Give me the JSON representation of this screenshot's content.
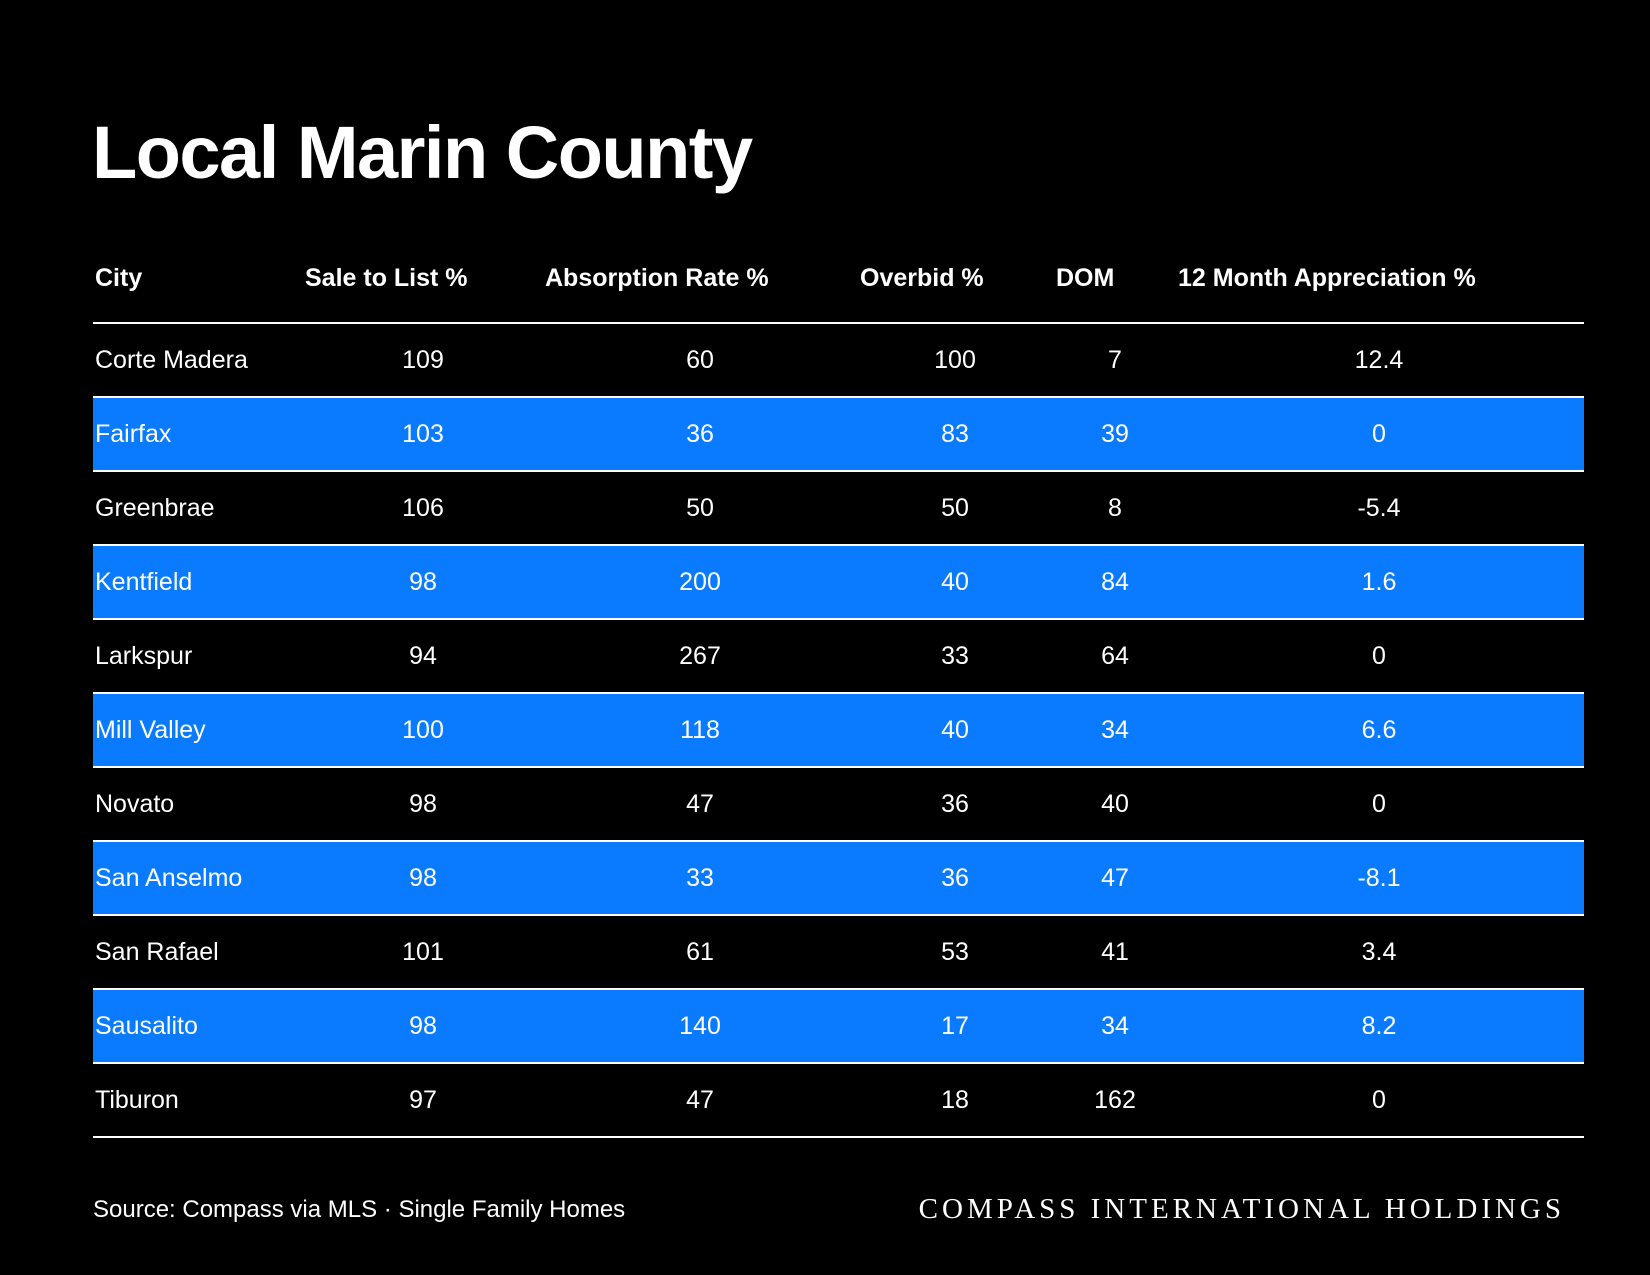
{
  "title": "Local Marin County",
  "table": {
    "headers": [
      "City",
      "Sale to List %",
      "Absorption Rate %",
      "Overbid %",
      "DOM",
      "12 Month Appreciation %"
    ],
    "rows": [
      [
        "Corte Madera",
        "109",
        "60",
        "100",
        "7",
        "12.4"
      ],
      [
        "Fairfax",
        "103",
        "36",
        "83",
        "39",
        "0"
      ],
      [
        "Greenbrae",
        "106",
        "50",
        "50",
        "8",
        "-5.4"
      ],
      [
        "Kentfield",
        "98",
        "200",
        "40",
        "84",
        "1.6"
      ],
      [
        "Larkspur",
        "94",
        "267",
        "33",
        "64",
        "0"
      ],
      [
        "Mill Valley",
        "100",
        "118",
        "40",
        "34",
        "6.6"
      ],
      [
        "Novato",
        "98",
        "47",
        "36",
        "40",
        "0"
      ],
      [
        "San Anselmo",
        "98",
        "33",
        "36",
        "47",
        "-8.1"
      ],
      [
        "San Rafael",
        "101",
        "61",
        "53",
        "41",
        "3.4"
      ],
      [
        "Sausalito",
        "98",
        "140",
        "17",
        "34",
        "8.2"
      ],
      [
        "Tiburon",
        "97",
        "47",
        "18",
        "162",
        "0"
      ]
    ]
  },
  "footer": {
    "source": "Source: Compass via MLS · Single Family Homes",
    "brand": "COMPASS INTERNATIONAL HOLDINGS"
  },
  "colors": {
    "background": "#000000",
    "text": "#ffffff",
    "row_highlight": "#0a7bff",
    "rule": "#ffffff"
  }
}
